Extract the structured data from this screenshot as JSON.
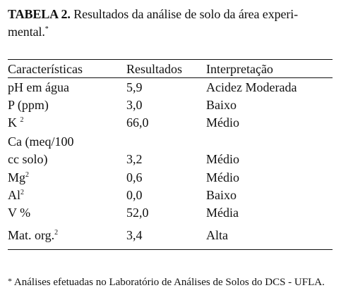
{
  "caption": {
    "lead": "TABELA 2.",
    "line1": "Resultados da análise de solo da área experi-",
    "line2": "mental.",
    "mark": "*"
  },
  "table": {
    "headers": [
      "Características",
      "Resultados",
      "Interpretação"
    ],
    "rows": [
      {
        "label": "pH em água",
        "sup": "",
        "result": "5,9",
        "interp": "Acidez Moderada"
      },
      {
        "label": "P  (ppm)",
        "sup": "",
        "result": "3,0",
        "interp": "Baixo"
      },
      {
        "label": "K ",
        "sup": "2",
        "result": "66,0",
        "interp": "Médio"
      },
      {
        "label": "Ca  (meq/100",
        "sup": "",
        "result": "",
        "interp": ""
      },
      {
        "label": "cc solo)",
        "sup": "",
        "result": "3,2",
        "interp": "Médio"
      },
      {
        "label": "Mg",
        "sup": "2",
        "result": "0,6",
        "interp": "Médio"
      },
      {
        "label": "Al",
        "sup": "2",
        "result": "0,0",
        "interp": "Baixo"
      },
      {
        "label": "V  %",
        "sup": "",
        "result": "52,0",
        "interp": "Média"
      },
      {
        "label": "Mat. org.",
        "sup": "2",
        "result": "3,4",
        "interp": "Alta"
      }
    ]
  },
  "footnote": {
    "mark": "*",
    "text": " Análises efetuadas no Laboratório de Análises de Solos do DCS - UFLA."
  }
}
